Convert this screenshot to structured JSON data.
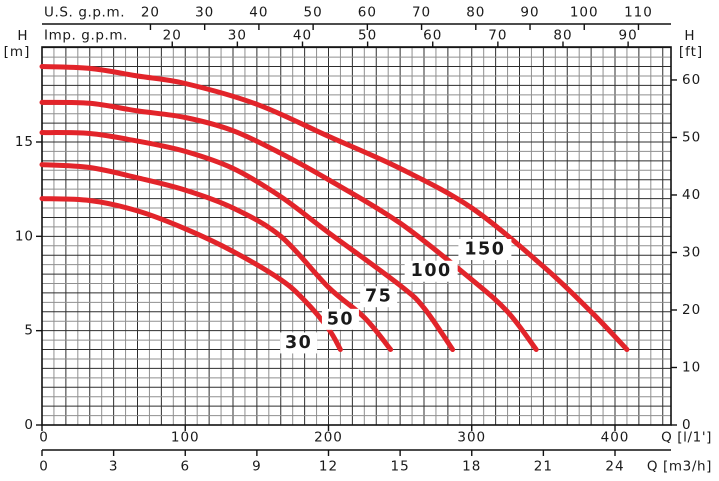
{
  "background": "#ffffff",
  "chart_data": {
    "type": "line",
    "description": "Pump performance curves: head H versus flow Q for five pump models",
    "curve_color": "#e2242a",
    "ink_color": "#1a1a1a",
    "grid_minor_color": "#8f8f8f",
    "grid_major_color": "#2e2e2e",
    "grid_step": {
      "x_m3h": 0.5,
      "y_m": 0.5
    },
    "x_range_m3h": [
      0,
      26.3
    ],
    "y_range_m": [
      0,
      20.0
    ],
    "x_axes": {
      "us_gpm": {
        "label": "U.S. g.p.m.",
        "ticks": [
          20,
          30,
          40,
          50,
          60,
          70,
          80,
          90,
          100,
          110
        ],
        "m3h_per_unit": 0.22712
      },
      "imp_gpm": {
        "label": "Imp. g.p.m.",
        "ticks": [
          20,
          30,
          40,
          50,
          60,
          70,
          80,
          90
        ],
        "m3h_per_unit": 0.27277
      },
      "l_per_min": {
        "label": "Q [l/1']",
        "ticks": [
          0,
          100,
          200,
          300,
          400
        ],
        "m3h_per_unit": 0.06
      },
      "m3_per_h": {
        "label": "Q [m3/h]",
        "ticks": [
          0,
          3,
          6,
          9,
          12,
          15,
          18,
          21,
          24
        ],
        "m3h_per_unit": 1
      }
    },
    "y_axes": {
      "meters": {
        "letter": "H",
        "unit": "[m]",
        "ticks": [
          0,
          5,
          10,
          15
        ],
        "m_per_unit": 1
      },
      "feet": {
        "letter": "H",
        "unit": "[ft]",
        "ticks": [
          0,
          10,
          20,
          30,
          40,
          50,
          60
        ],
        "m_per_unit": 0.3048
      }
    },
    "series": [
      {
        "name": "30",
        "label_at": [
          10.75,
          4.35
        ],
        "points": [
          [
            0,
            12.0
          ],
          [
            2,
            11.9
          ],
          [
            4,
            11.35
          ],
          [
            6,
            10.4
          ],
          [
            8,
            9.2
          ],
          [
            10,
            7.7
          ],
          [
            11,
            6.6
          ],
          [
            12,
            5.1
          ],
          [
            12.5,
            4.0
          ]
        ]
      },
      {
        "name": "50",
        "label_at": [
          12.5,
          5.6
        ],
        "points": [
          [
            0,
            13.8
          ],
          [
            2,
            13.65
          ],
          [
            4,
            13.1
          ],
          [
            6,
            12.45
          ],
          [
            8,
            11.5
          ],
          [
            10,
            10.0
          ],
          [
            12,
            7.3
          ],
          [
            13.5,
            5.7
          ],
          [
            14.6,
            4.0
          ]
        ]
      },
      {
        "name": "75",
        "label_at": [
          14.1,
          6.8
        ],
        "points": [
          [
            0,
            15.5
          ],
          [
            2,
            15.45
          ],
          [
            4,
            15.05
          ],
          [
            6,
            14.5
          ],
          [
            8,
            13.6
          ],
          [
            10,
            12.1
          ],
          [
            12,
            10.2
          ],
          [
            15,
            7.4
          ],
          [
            16,
            6.2
          ],
          [
            17.2,
            4.0
          ]
        ]
      },
      {
        "name": "100",
        "label_at": [
          16.3,
          8.15
        ],
        "points": [
          [
            0,
            17.1
          ],
          [
            2,
            17.05
          ],
          [
            4,
            16.65
          ],
          [
            6,
            16.3
          ],
          [
            8,
            15.6
          ],
          [
            10,
            14.4
          ],
          [
            12,
            13.0
          ],
          [
            15,
            10.7
          ],
          [
            18,
            7.7
          ],
          [
            19.5,
            6.0
          ],
          [
            20.7,
            4.0
          ]
        ]
      },
      {
        "name": "150",
        "label_at": [
          18.55,
          9.3
        ],
        "points": [
          [
            0,
            19.0
          ],
          [
            2,
            18.9
          ],
          [
            4,
            18.5
          ],
          [
            6,
            18.1
          ],
          [
            9,
            17.0
          ],
          [
            12,
            15.3
          ],
          [
            15,
            13.6
          ],
          [
            18,
            11.5
          ],
          [
            21,
            8.4
          ],
          [
            23,
            6.0
          ],
          [
            24.5,
            4.0
          ]
        ]
      }
    ]
  }
}
